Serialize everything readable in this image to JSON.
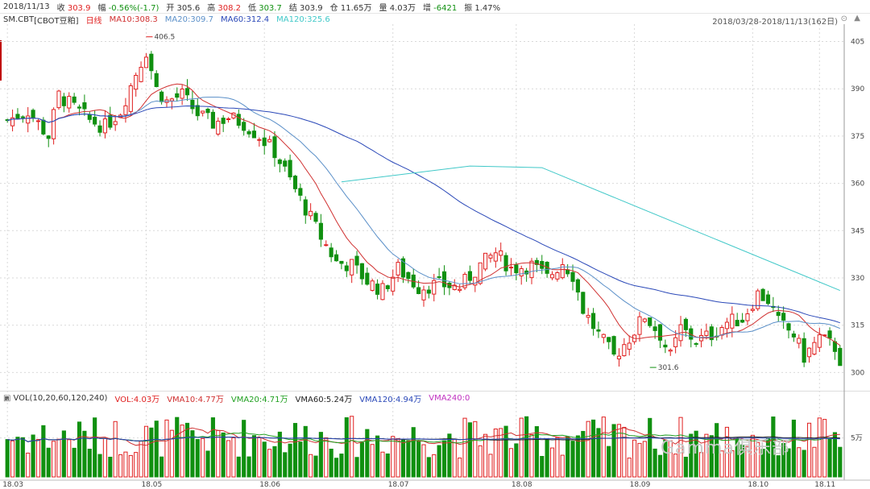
{
  "quote": {
    "date": "2018/11/13",
    "close_label": "收",
    "close": "303.9",
    "change_label": "幅",
    "change": "-0.56%(-1.7)",
    "open_label": "开",
    "open": "305.6",
    "high_label": "高",
    "high": "308.2",
    "low_label": "低",
    "low": "303.7",
    "settle_label": "结",
    "settle": "303.9",
    "oi_label": "仓",
    "oi": "11.65万",
    "volume_label": "量",
    "volume": "4.03万",
    "oi_change_label": "增",
    "oi_change": "-6421",
    "amplitude_label": "振",
    "amplitude": "1.47%"
  },
  "indicators": {
    "symbol": "SM.CBT",
    "name": "[CBOT豆粕]",
    "period": "日线",
    "ma10": "MA10:308.3",
    "ma20": "MA20:309.7",
    "ma60": "MA60:312.4",
    "ma120": "MA120:325.6",
    "range": "2018/03/28-2018/11/13(162日)"
  },
  "volume_indicators": {
    "title": "VOL(10,20,60,120,240)",
    "vol": "VOL:4.03万",
    "vma10": "VMA10:4.77万",
    "vma20": "VMA20:4.71万",
    "vma60": "VMA60:5.24万",
    "vma120": "VMA120:4.94万",
    "vma240": "VMA240:0"
  },
  "watermark": "Gamma俱乐部",
  "colors": {
    "up": "#e02020",
    "down": "#109010",
    "ma10": "#d03030",
    "ma20": "#5a8fc8",
    "ma60": "#2a48b8",
    "ma120": "#40c8c8",
    "grid": "#d9d9d9"
  },
  "chart_data": {
    "type": "candlestick",
    "ylim": [
      296,
      410
    ],
    "y_ticks": [
      300,
      315,
      330,
      345,
      360,
      375,
      390,
      405
    ],
    "x_tick_labels": [
      "18.03",
      "18.05",
      "18.06",
      "18.07",
      "18.08",
      "18.09",
      "18.10",
      "18.11"
    ],
    "x_tick_index": [
      0,
      27,
      50,
      75,
      99,
      122,
      145,
      158
    ],
    "annotations": [
      {
        "label": "406.5",
        "index": 27
      },
      {
        "label": "301.6",
        "index": 125
      }
    ],
    "volume_tick": "5万",
    "volume_tick_value": 5,
    "volume_ylim": [
      0,
      9.5
    ],
    "volume_unit": "万",
    "anchors": [
      [
        0,
        380
      ],
      [
        4,
        383
      ],
      [
        8,
        375
      ],
      [
        10,
        388
      ],
      [
        13,
        384
      ],
      [
        16,
        380
      ],
      [
        19,
        378
      ],
      [
        22,
        383
      ],
      [
        25,
        395
      ],
      [
        27,
        402
      ],
      [
        29,
        390
      ],
      [
        31,
        386
      ],
      [
        34,
        388
      ],
      [
        37,
        382
      ],
      [
        40,
        379
      ],
      [
        43,
        381
      ],
      [
        46,
        379
      ],
      [
        49,
        375
      ],
      [
        52,
        370
      ],
      [
        55,
        361
      ],
      [
        58,
        352
      ],
      [
        61,
        343
      ],
      [
        64,
        335
      ],
      [
        67,
        334
      ],
      [
        70,
        329
      ],
      [
        73,
        326
      ],
      [
        76,
        333
      ],
      [
        80,
        327
      ],
      [
        84,
        328
      ],
      [
        88,
        327
      ],
      [
        92,
        334
      ],
      [
        95,
        338
      ],
      [
        98,
        333
      ],
      [
        102,
        334
      ],
      [
        105,
        330
      ],
      [
        108,
        335
      ],
      [
        110,
        331
      ],
      [
        112,
        320
      ],
      [
        115,
        312
      ],
      [
        118,
        305
      ],
      [
        121,
        311
      ],
      [
        124,
        318
      ],
      [
        127,
        312
      ],
      [
        129,
        305
      ],
      [
        131,
        314
      ],
      [
        134,
        310
      ],
      [
        137,
        312
      ],
      [
        140,
        316
      ],
      [
        143,
        317
      ],
      [
        146,
        325
      ],
      [
        148,
        323
      ],
      [
        150,
        316
      ],
      [
        153,
        312
      ],
      [
        155,
        305
      ],
      [
        158,
        311
      ],
      [
        161,
        308
      ],
      [
        162,
        304
      ]
    ],
    "ma120_endpoints": [
      [
        65,
        360.5
      ],
      [
        90,
        365.5
      ],
      [
        104,
        365
      ],
      [
        162,
        326
      ]
    ]
  }
}
